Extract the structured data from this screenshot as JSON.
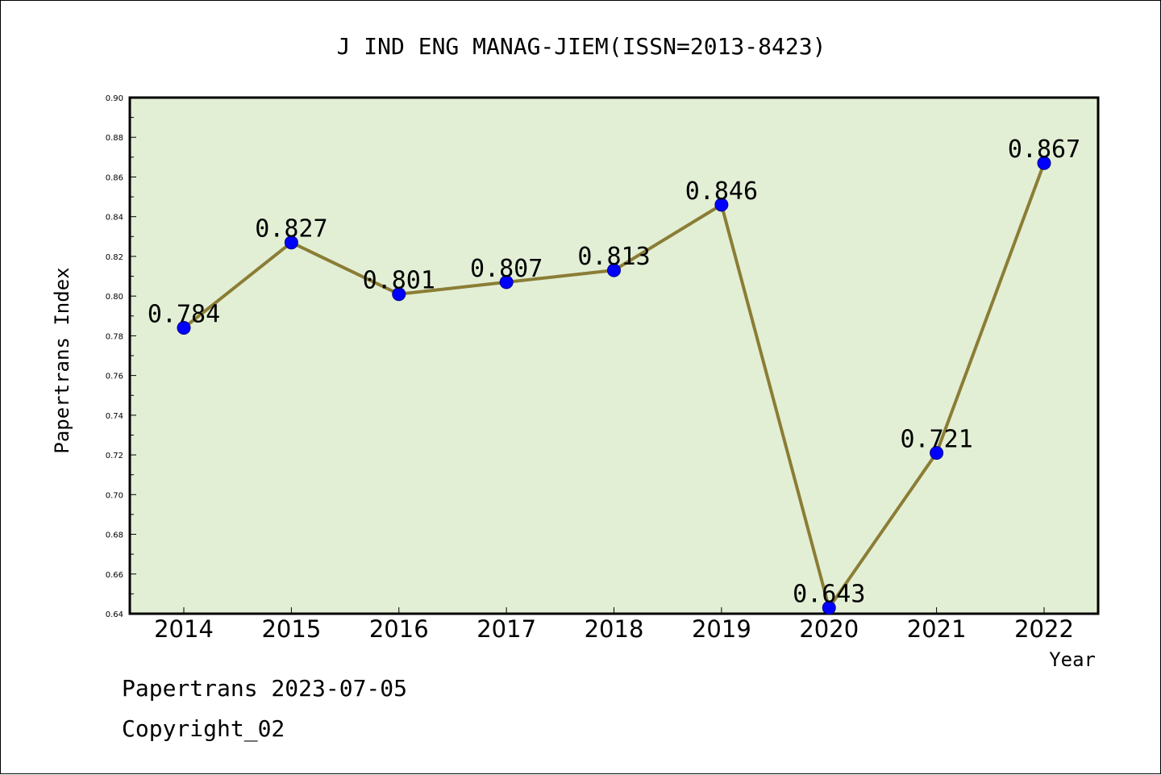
{
  "chart_data": {
    "type": "line",
    "title": "J IND ENG MANAG-JIEM(ISSN=2013-8423)",
    "xlabel": "Year",
    "ylabel": "Papertrans Index",
    "categories": [
      "2014",
      "2015",
      "2016",
      "2017",
      "2018",
      "2019",
      "2020",
      "2021",
      "2022"
    ],
    "series": [
      {
        "values": [
          0.784,
          0.827,
          0.801,
          0.807,
          0.813,
          0.846,
          0.643,
          0.721,
          0.867
        ],
        "data_labels": [
          "0.784",
          "0.827",
          "0.801",
          "0.807",
          "0.813",
          "0.846",
          "0.643",
          "0.721",
          "0.867"
        ]
      }
    ],
    "ylim": [
      0.64,
      0.9
    ],
    "yticks": [
      "0.64",
      "0.66",
      "0.68",
      "0.70",
      "0.72",
      "0.74",
      "0.76",
      "0.78",
      "0.80",
      "0.82",
      "0.84",
      "0.86",
      "0.88",
      "0.90"
    ],
    "grid": false,
    "legend": "none",
    "colors": {
      "plot_background": "#e2efd5",
      "line": "#8b7d35",
      "marker": "#0000ff"
    }
  },
  "footer": {
    "date_line": "Papertrans 2023-07-05",
    "copyright": "Copyright_02"
  }
}
